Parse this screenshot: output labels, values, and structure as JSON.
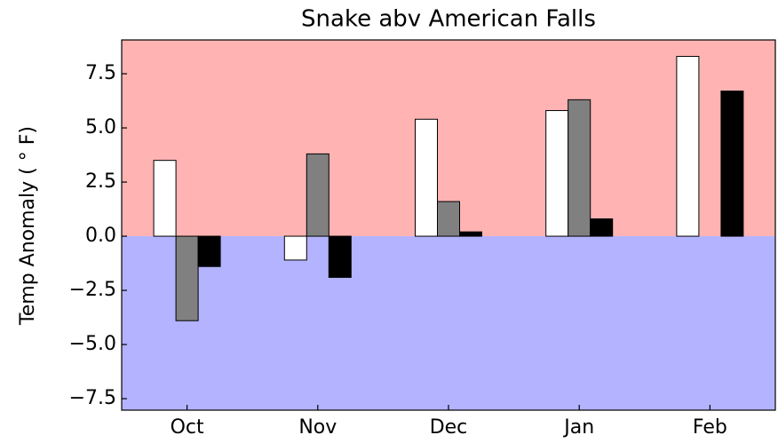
{
  "chart_data": {
    "type": "bar",
    "title": "Snake abv American Falls",
    "y_label": "Temp Anomaly ( ° F)",
    "categories": [
      "Oct",
      "Nov",
      "Dec",
      "Jan",
      "Feb"
    ],
    "series": [
      {
        "color": "#ffffff",
        "values": [
          3.5,
          -1.1,
          5.4,
          5.8,
          8.3
        ]
      },
      {
        "color": "#808080",
        "values": [
          -3.9,
          3.8,
          1.6,
          6.3,
          0
        ]
      },
      {
        "color": "#000000",
        "values": [
          -1.4,
          -1.9,
          0.2,
          0.8,
          6.7
        ]
      }
    ],
    "ylim": [
      -8.03,
      9.06
    ],
    "yticks": [
      {
        "value": -7.5,
        "label": "−7.5"
      },
      {
        "value": -5,
        "label": "−5.0"
      },
      {
        "value": -2.5,
        "label": "−2.5"
      },
      {
        "value": 0,
        "label": "0.0"
      },
      {
        "value": 2.5,
        "label": "2.5"
      },
      {
        "value": 5,
        "label": "5.0"
      },
      {
        "value": 7.5,
        "label": "7.5"
      }
    ],
    "positive_background": "#ffb3b3",
    "negative_background": "#b3b3ff",
    "grid": false
  }
}
